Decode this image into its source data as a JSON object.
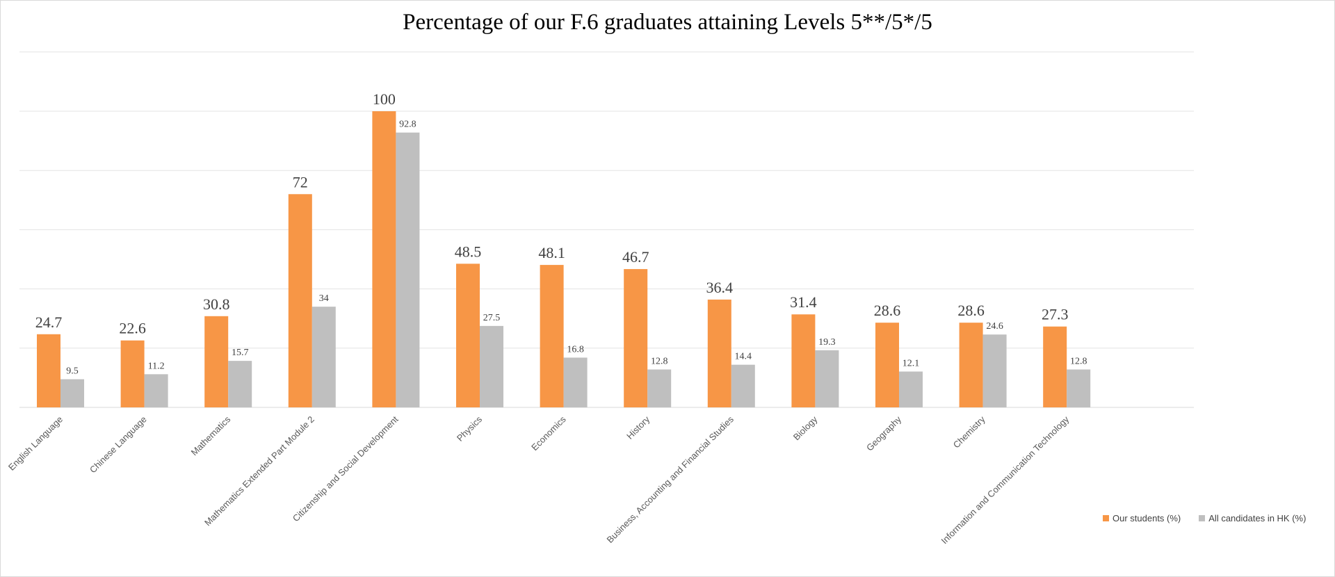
{
  "chart_data": {
    "type": "bar",
    "title": "Percentage of our F.6 graduates attaining Levels 5**/5*/5",
    "xlabel": "",
    "ylabel": "",
    "ylim": [
      0,
      100
    ],
    "grid": true,
    "legend_position": "bottom-right",
    "categories": [
      "English Language",
      "Chinese Language",
      "Mathematics",
      "Mathematics Extended Part Module 2",
      "Citizenship and Social Development",
      "Physics",
      "Economics",
      "History",
      "Business, Accounting and Financial Studies",
      "Biology",
      "Geography",
      "Chemistry",
      "Information and Communication Technology"
    ],
    "series": [
      {
        "name": "Our students (%)",
        "color": "#F79646",
        "values": [
          24.7,
          22.6,
          30.8,
          72,
          100,
          48.5,
          48.1,
          46.7,
          36.4,
          31.4,
          28.6,
          28.6,
          27.3
        ]
      },
      {
        "name": "All candidates in HK (%)",
        "color": "#BFBFBF",
        "values": [
          9.5,
          11.2,
          15.7,
          34,
          92.8,
          27.5,
          16.8,
          12.8,
          14.4,
          19.3,
          12.1,
          24.6,
          12.8
        ]
      }
    ]
  }
}
